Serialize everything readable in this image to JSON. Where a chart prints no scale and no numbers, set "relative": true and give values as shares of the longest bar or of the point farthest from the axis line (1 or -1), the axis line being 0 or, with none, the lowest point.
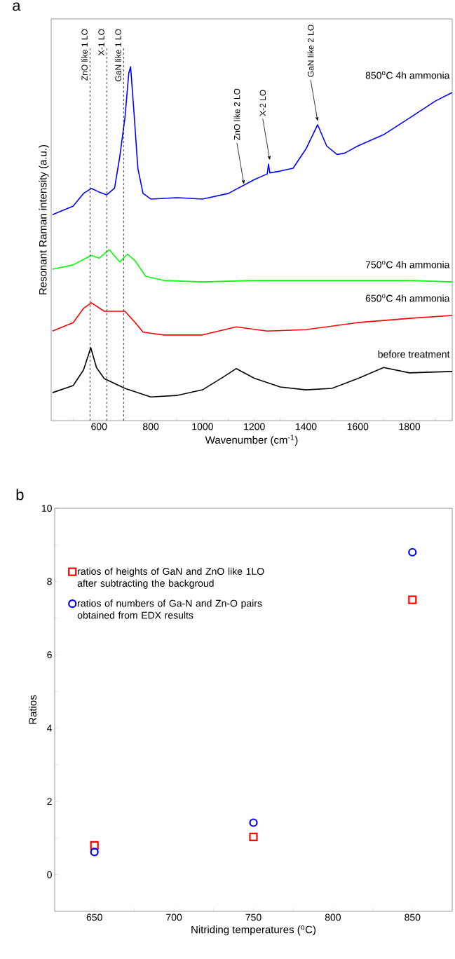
{
  "chart_data": [
    {
      "type": "line",
      "title": "a",
      "xlabel": "Wavenumber (cm$^{-1}$)",
      "ylabel": "Resonant Raman intensity (a.u.)",
      "relative": true,
      "xlim": [
        415,
        1965
      ],
      "xticks": [
        {
          "value": 500,
          "label": null
        },
        600,
        {
          "value": 700,
          "label": null
        },
        800,
        {
          "value": 900,
          "label": null
        },
        1000,
        {
          "value": 1100,
          "label": null
        },
        1200,
        {
          "value": 1300,
          "label": null
        },
        1400,
        {
          "value": 1500,
          "label": null
        },
        1600,
        {
          "value": 1700,
          "label": null
        },
        1800,
        {
          "value": 1900,
          "label": null
        }
      ],
      "line_style": "solid",
      "series": [
        {
          "name": "850$^{o}$C 4h ammonia",
          "color": "#0000ff",
          "x": [
            420,
            500,
            540,
            570,
            600,
            630,
            660,
            680,
            700,
            715,
            722,
            735,
            750,
            770,
            800,
            900,
            1000,
            1100,
            1200,
            1250,
            1255,
            1260,
            1300,
            1350,
            1400,
            1445,
            1480,
            1520,
            1550,
            1600,
            1700,
            1800,
            1900,
            1965
          ],
          "values": [
            0.582,
            0.606,
            0.642,
            0.656,
            0.646,
            0.638,
            0.657,
            0.745,
            0.855,
            0.982,
            1.0,
            0.871,
            0.713,
            0.642,
            0.626,
            0.63,
            0.626,
            0.642,
            0.681,
            0.697,
            0.725,
            0.7,
            0.705,
            0.713,
            0.768,
            0.836,
            0.776,
            0.752,
            0.756,
            0.776,
            0.808,
            0.855,
            0.903,
            0.927
          ]
        },
        {
          "name": "750$^{o}$C 4h ammonia",
          "color": "#00ff00",
          "x": [
            420,
            500,
            570,
            600,
            640,
            680,
            710,
            740,
            780,
            850,
            1000,
            1200,
            1400,
            1600,
            1800,
            1965
          ],
          "values": [
            0.428,
            0.44,
            0.467,
            0.459,
            0.483,
            0.448,
            0.471,
            0.451,
            0.408,
            0.396,
            0.392,
            0.396,
            0.396,
            0.396,
            0.396,
            0.392
          ]
        },
        {
          "name": "650$^{o}$C 4h ammonia",
          "color": "#ff0000",
          "x": [
            420,
            500,
            540,
            570,
            620,
            700,
            740,
            770,
            850,
            1000,
            1130,
            1250,
            1400,
            1600,
            1800,
            1965
          ],
          "values": [
            0.253,
            0.277,
            0.317,
            0.333,
            0.309,
            0.309,
            0.277,
            0.25,
            0.242,
            0.242,
            0.265,
            0.253,
            0.257,
            0.277,
            0.289,
            0.297
          ]
        },
        {
          "name": "before treatment",
          "color": "#000000",
          "x": [
            420,
            500,
            540,
            568,
            590,
            620,
            700,
            800,
            900,
            1000,
            1080,
            1130,
            1200,
            1300,
            1400,
            1500,
            1600,
            1700,
            1800,
            1965
          ],
          "values": [
            0.079,
            0.099,
            0.143,
            0.206,
            0.15,
            0.119,
            0.091,
            0.067,
            0.071,
            0.087,
            0.123,
            0.147,
            0.12,
            0.095,
            0.087,
            0.091,
            0.119,
            0.15,
            0.135,
            0.139
          ]
        }
      ],
      "ref_lines": [
        {
          "axis": "x",
          "value": 565,
          "label": "ZnO like 1 LO",
          "color": "#000000",
          "line_style": "dashed"
        },
        {
          "axis": "x",
          "value": 630,
          "label": "X-1 LO",
          "color": "#000000",
          "line_style": "dashed"
        },
        {
          "axis": "x",
          "value": 695,
          "label": "GaN like 1 LO",
          "color": "#000000",
          "line_style": "dashed"
        }
      ],
      "annotations": [
        {
          "text": "ZnO like 2 LO",
          "x": 1160,
          "y": 0.662
        },
        {
          "text": "X-2 LO",
          "x": 1260,
          "y": 0.73
        },
        {
          "text": "GaN like 2 LO",
          "x": 1445,
          "y": 0.84
        }
      ]
    },
    {
      "type": "scatter",
      "title": "b",
      "xlabel": "Nitriding temperatures ($^{o}$C)",
      "ylabel": "Ratios",
      "xlim": [
        625,
        875
      ],
      "ylim": [
        -1,
        10
      ],
      "xticks": [
        650,
        {
          "value": 675,
          "label": null
        },
        700,
        {
          "value": 725,
          "label": null
        },
        750,
        {
          "value": 775,
          "label": null
        },
        800,
        {
          "value": 825,
          "label": null
        },
        850
      ],
      "yticks": [
        0,
        {
          "value": 1,
          "label": null
        },
        2,
        {
          "value": 3,
          "label": null
        },
        4,
        {
          "value": 5,
          "label": null
        },
        6,
        {
          "value": 7,
          "label": null
        },
        8,
        {
          "value": 9,
          "label": null
        },
        10
      ],
      "legend": "top left",
      "x": [
        650,
        750,
        850
      ],
      "series": [
        {
          "name": "ratios of heights of GaN and ZnO like 1LO after subtracting the backgroud",
          "color": "#ff0000",
          "marker": "square",
          "values": [
            0.8,
            1.03,
            7.5
          ]
        },
        {
          "name": "ratios of numbers of Ga-N and Zn-O pairs obtained from EDX results",
          "color": "#0000ff",
          "marker": "circle",
          "values": [
            0.62,
            1.42,
            8.8
          ]
        }
      ]
    }
  ]
}
